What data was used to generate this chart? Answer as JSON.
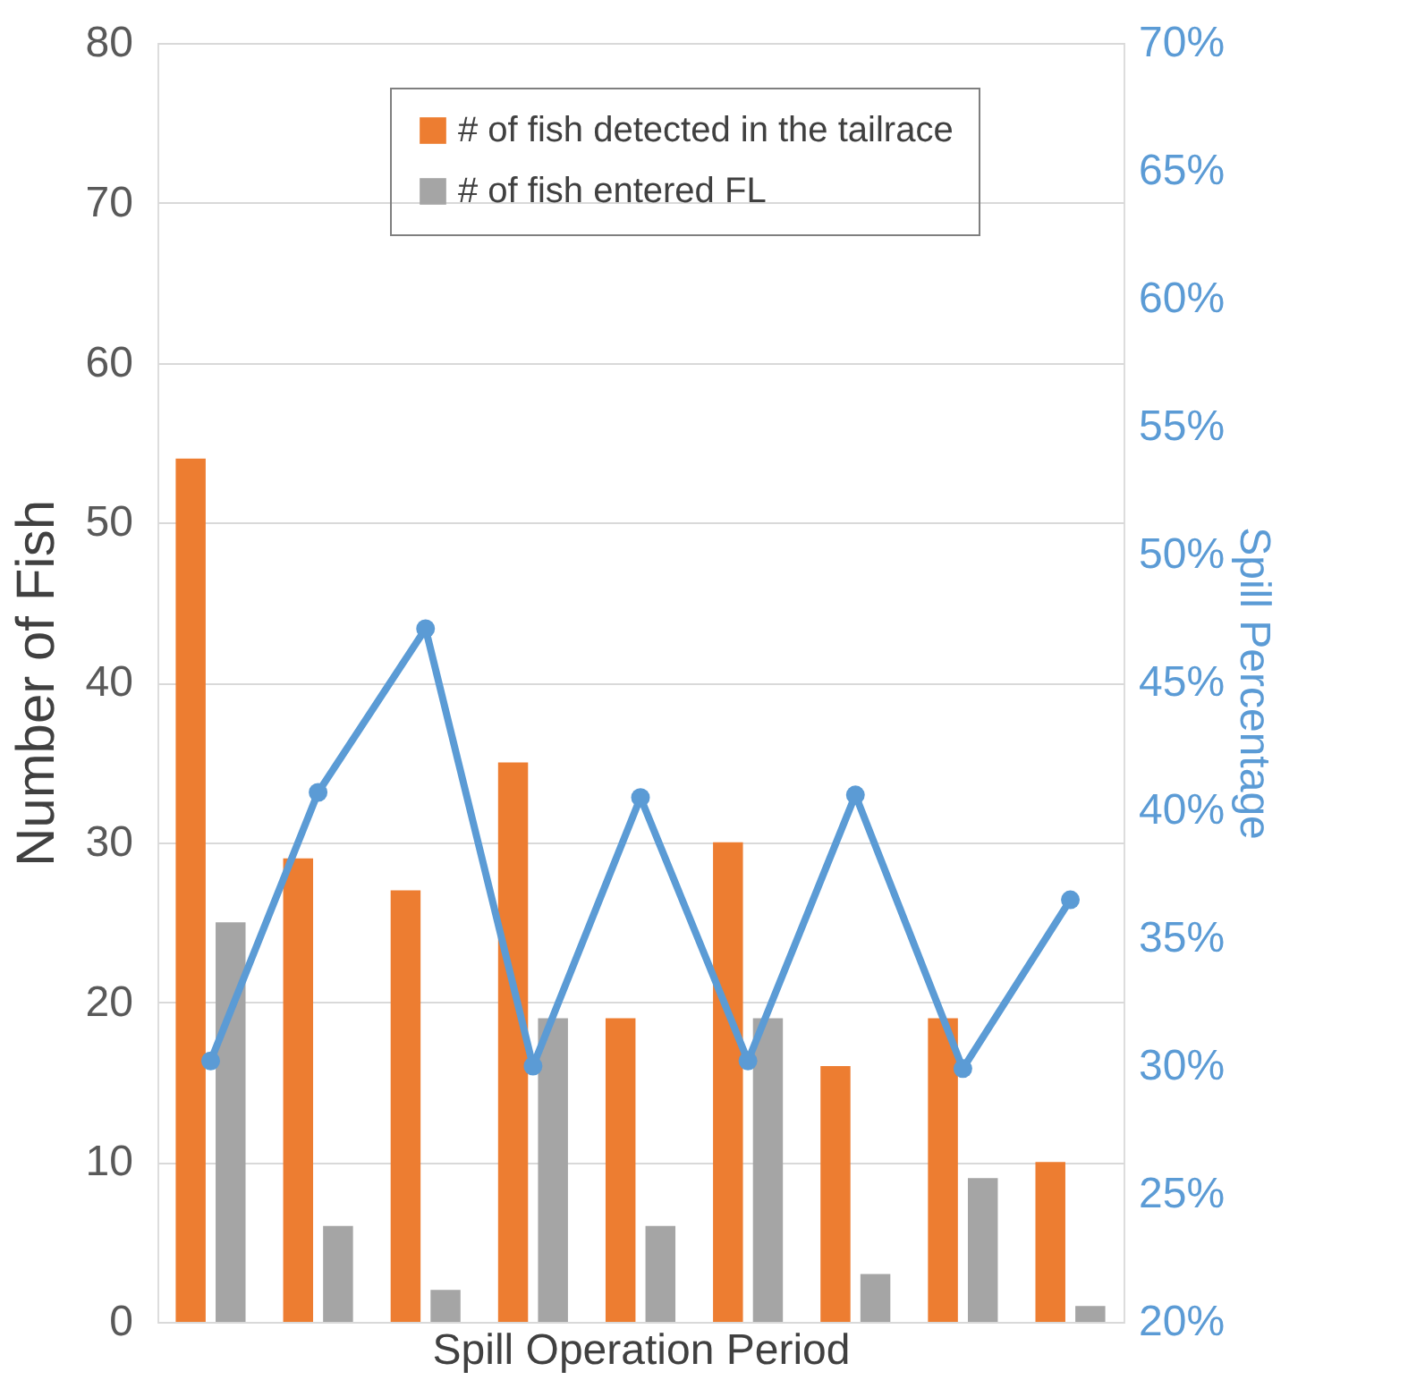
{
  "chart_data": {
    "type": "bar",
    "xlabel": "Spill Operation Period",
    "ylabel": "Number of Fish",
    "y2label": "Spill Percentage",
    "categories": [
      null,
      null,
      null,
      null,
      null,
      null,
      null,
      null,
      null
    ],
    "series": [
      {
        "name": "# of fish detected in the tailrace",
        "color": "#ed7d31",
        "values": [
          54,
          29,
          27,
          35,
          19,
          30,
          16,
          19,
          10
        ]
      },
      {
        "name": "# of fish entered FL",
        "color": "#a5a5a5",
        "values": [
          25,
          6,
          2,
          19,
          6,
          19,
          3,
          9,
          1
        ]
      },
      {
        "type": "line",
        "axis": "y2",
        "color": "#5b9bd5",
        "marker": "circle",
        "values": [
          30.2,
          40.7,
          47.1,
          30.0,
          40.5,
          30.2,
          40.6,
          29.9,
          36.5
        ]
      }
    ],
    "ylim": [
      0,
      80
    ],
    "yticks": [
      0,
      10,
      20,
      30,
      40,
      50,
      60,
      70,
      80
    ],
    "y2lim": [
      20,
      70
    ],
    "y2ticks": [
      {
        "value": 20,
        "label": "20%"
      },
      {
        "value": 25,
        "label": "25%"
      },
      {
        "value": 30,
        "label": "30%"
      },
      {
        "value": 35,
        "label": "35%"
      },
      {
        "value": 40,
        "label": "40%"
      },
      {
        "value": 45,
        "label": "45%"
      },
      {
        "value": 50,
        "label": "50%"
      },
      {
        "value": 55,
        "label": "55%"
      },
      {
        "value": 60,
        "label": "60%"
      },
      {
        "value": 65,
        "label": "65%"
      },
      {
        "value": 70,
        "label": "70%"
      }
    ],
    "grid": "y",
    "legend": "top right",
    "tick_labels": "y"
  }
}
